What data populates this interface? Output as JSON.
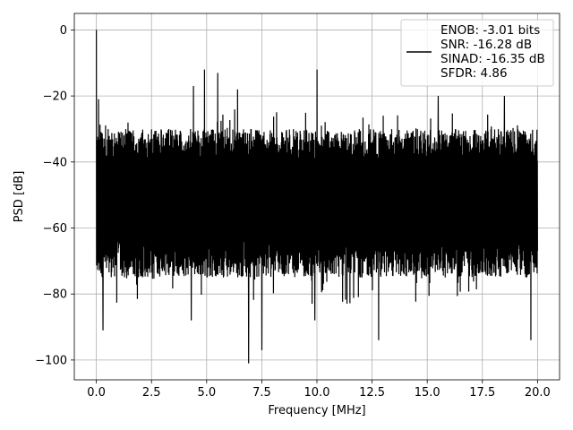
{
  "chart_data": {
    "type": "line",
    "xlabel": "Frequency [MHz]",
    "ylabel": "PSD [dB]",
    "xlim": [
      -1.0,
      21.0
    ],
    "ylim": [
      -106.0,
      5.0
    ],
    "xticks": [
      0.0,
      2.5,
      5.0,
      7.5,
      10.0,
      12.5,
      15.0,
      17.5,
      20.0
    ],
    "xtick_labels": [
      "0.0",
      "2.5",
      "5.0",
      "7.5",
      "10.0",
      "12.5",
      "15.0",
      "17.5",
      "20.0"
    ],
    "yticks": [
      0,
      -20,
      -40,
      -60,
      -80,
      -100
    ],
    "ytick_labels": [
      "0",
      "−20",
      "−40",
      "−60",
      "−80",
      "−100"
    ],
    "grid": true,
    "legend_position": "top-right",
    "series": [
      {
        "name": "ENOB: -3.01 bits\nSNR: -16.28 dB\nSINAD: -16.35 dB\nSFDR: 4.86",
        "color": "#000000",
        "peaks": [
          {
            "x": 0.0,
            "y": 0.0
          },
          {
            "x": 0.1,
            "y": -21.0
          },
          {
            "x": 4.9,
            "y": -12.0
          },
          {
            "x": 5.5,
            "y": -13.0
          },
          {
            "x": 10.0,
            "y": -12.0
          },
          {
            "x": 4.4,
            "y": -17.0
          },
          {
            "x": 6.4,
            "y": -18.0
          },
          {
            "x": 15.5,
            "y": -20.0
          },
          {
            "x": 18.5,
            "y": -20.0
          }
        ],
        "troughs": [
          {
            "x": 6.9,
            "y": -101.0
          },
          {
            "x": 7.5,
            "y": -97.0
          },
          {
            "x": 12.8,
            "y": -94.0
          },
          {
            "x": 19.7,
            "y": -94.0
          },
          {
            "x": 0.3,
            "y": -91.0
          },
          {
            "x": 4.3,
            "y": -88.0
          },
          {
            "x": 9.9,
            "y": -88.0
          }
        ],
        "noise_floor_top": -30.0,
        "noise_floor_bottom": -75.0,
        "noise_center": -50.0
      }
    ]
  }
}
